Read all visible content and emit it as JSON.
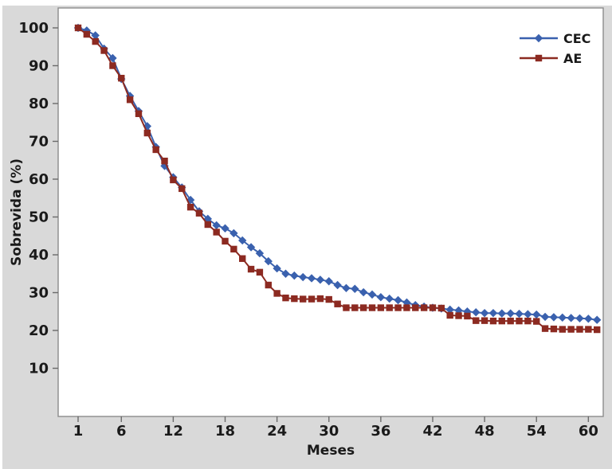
{
  "figure": {
    "page_background": "#ffffff",
    "figure_background": "#d9d9d9",
    "plot_background": "#ffffff",
    "plot_border_color": "#8c8c8c",
    "tick_color": "#6a6a6a",
    "text_color": "#1a1a1a"
  },
  "chart_data": {
    "type": "line",
    "title": "",
    "xlabel": "Meses",
    "ylabel": "Sobrevida (%)",
    "x_unit": "month",
    "xticks": [
      1,
      6,
      12,
      18,
      24,
      30,
      36,
      42,
      48,
      54,
      60
    ],
    "yticks": [
      10,
      20,
      30,
      40,
      50,
      60,
      70,
      80,
      90,
      100
    ],
    "xlim": [
      -1.3,
      61.7
    ],
    "ylim": [
      -2.7,
      105.3
    ],
    "grid": false,
    "legend_position": "top-right",
    "x": [
      1,
      2,
      3,
      4,
      5,
      6,
      7,
      8,
      9,
      10,
      11,
      12,
      13,
      14,
      15,
      16,
      17,
      18,
      19,
      20,
      21,
      22,
      23,
      24,
      25,
      26,
      27,
      28,
      29,
      30,
      31,
      32,
      33,
      34,
      35,
      36,
      37,
      38,
      39,
      40,
      41,
      42,
      43,
      44,
      45,
      46,
      47,
      48,
      49,
      50,
      51,
      52,
      53,
      54,
      55,
      56,
      57,
      58,
      59,
      60,
      61
    ],
    "series": [
      {
        "name": "CEC",
        "color": "#3a61ae",
        "marker": "diamond",
        "values": [
          100,
          99.3,
          98,
          94.5,
          92,
          86.5,
          82,
          78,
          74,
          68.5,
          63.5,
          60.5,
          57.8,
          54.5,
          51.5,
          49.5,
          47.8,
          47,
          45.7,
          43.8,
          42,
          40.4,
          38.3,
          36.4,
          35,
          34.5,
          34.1,
          33.8,
          33.4,
          33,
          32,
          31.2,
          31,
          30.1,
          29.5,
          28.8,
          28.4,
          28,
          27.4,
          26.7,
          26.3,
          26,
          25.8,
          25.5,
          25.3,
          25,
          24.8,
          24.6,
          24.6,
          24.5,
          24.5,
          24.4,
          24.3,
          24.2,
          23.6,
          23.5,
          23.4,
          23.3,
          23.2,
          23.1,
          22.8
        ]
      },
      {
        "name": "AE",
        "color": "#8c2a21",
        "marker": "square",
        "values": [
          100,
          98.3,
          96.4,
          94,
          90,
          86.7,
          81,
          77.3,
          72.2,
          67.8,
          64.8,
          59.8,
          57.5,
          52.6,
          51,
          48,
          46,
          43.6,
          41.5,
          39,
          36.2,
          35.4,
          32,
          29.8,
          28.6,
          28.4,
          28.3,
          28.3,
          28.4,
          28.2,
          27,
          26,
          26,
          26,
          26,
          26,
          26,
          26,
          26,
          26,
          26,
          26,
          25.9,
          24,
          23.9,
          23.8,
          22.6,
          22.6,
          22.5,
          22.5,
          22.5,
          22.5,
          22.5,
          22.4,
          20.5,
          20.4,
          20.3,
          20.3,
          20.3,
          20.3,
          20.2
        ]
      }
    ],
    "legend": [
      "CEC",
      "AE"
    ]
  }
}
